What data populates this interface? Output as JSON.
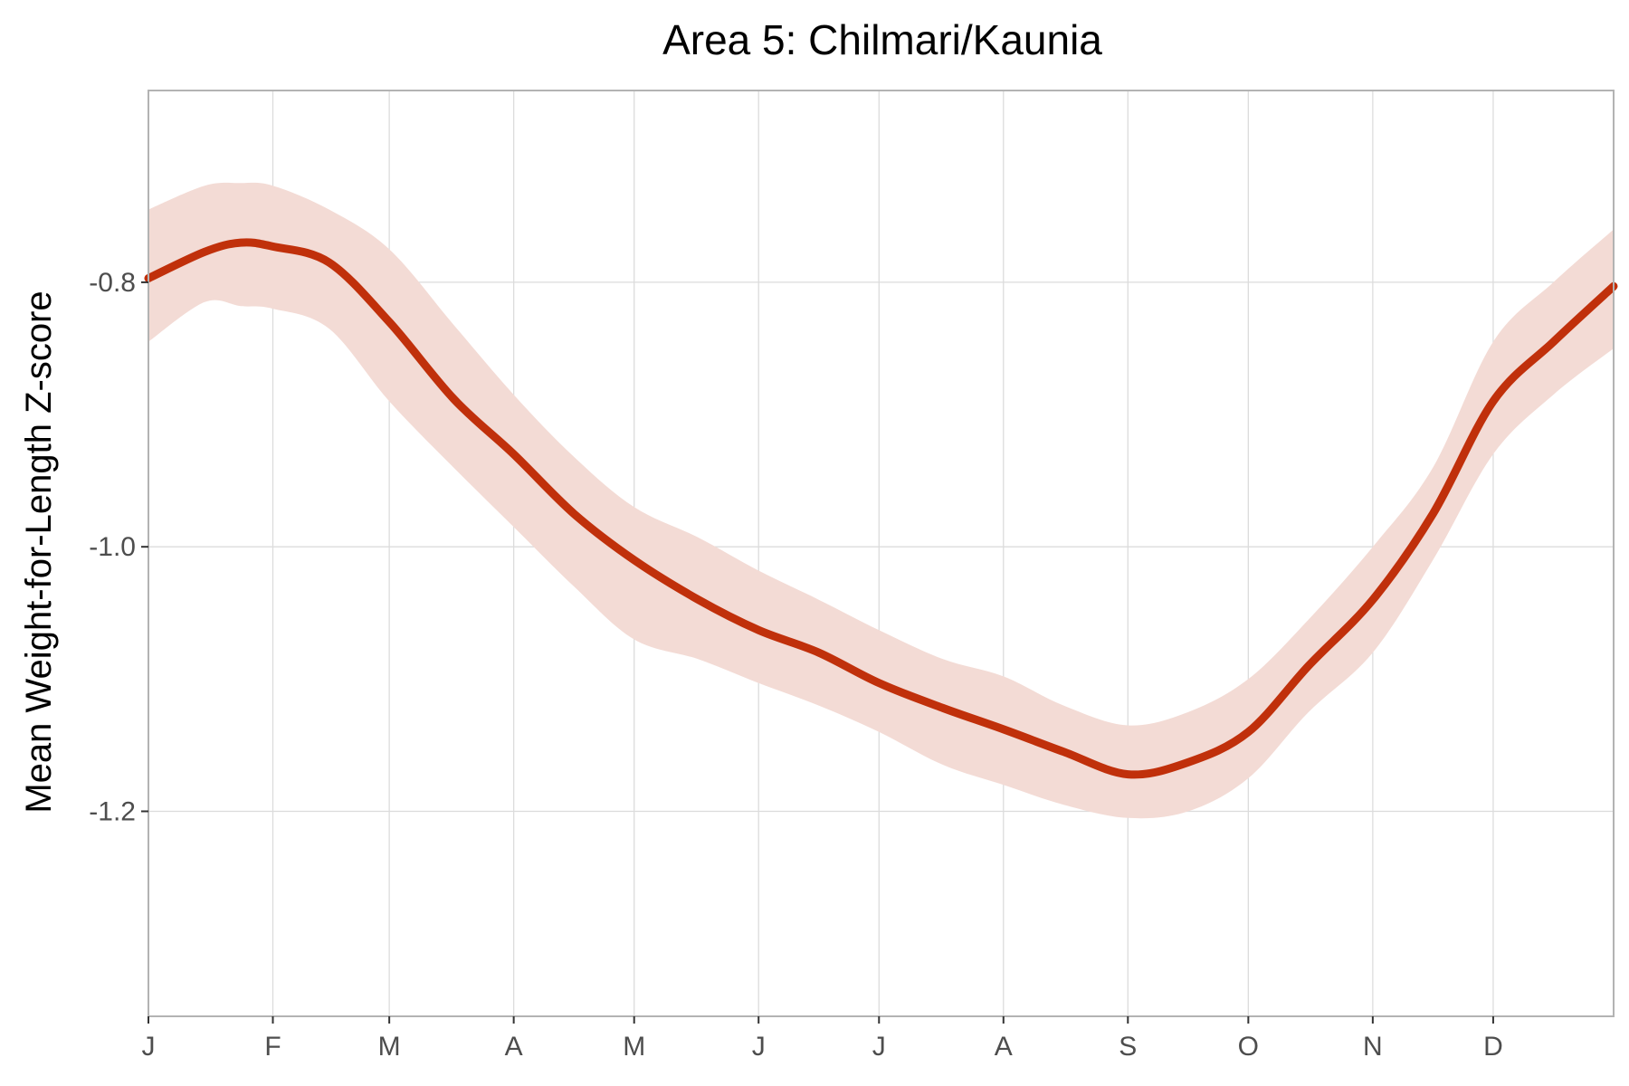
{
  "chart_data": {
    "type": "line",
    "title": "Area 5: Chilmari/Kaunia",
    "xlabel": "",
    "ylabel": "Mean Weight-for-Length Z-score",
    "x_ticks": [
      {
        "label": "J",
        "day": 1
      },
      {
        "label": "F",
        "day": 32
      },
      {
        "label": "M",
        "day": 61
      },
      {
        "label": "A",
        "day": 92
      },
      {
        "label": "M",
        "day": 122
      },
      {
        "label": "J",
        "day": 153
      },
      {
        "label": "J",
        "day": 183
      },
      {
        "label": "A",
        "day": 214
      },
      {
        "label": "S",
        "day": 245
      },
      {
        "label": "O",
        "day": 275
      },
      {
        "label": "N",
        "day": 306
      },
      {
        "label": "D",
        "day": 336
      }
    ],
    "xlim": [
      1,
      366
    ],
    "ylim": [
      -1.355,
      -0.655
    ],
    "y_ticks": [
      -0.8,
      -1.0,
      -1.2
    ],
    "grid": true,
    "legend": "none",
    "colors": {
      "line": "#c0300b",
      "band": "#f3dbd5"
    },
    "series": [
      {
        "x": [
          1,
          15,
          24,
          32,
          46,
          61,
          77,
          92,
          107,
          122,
          138,
          153,
          168,
          183,
          199,
          214,
          229,
          245,
          260,
          275,
          290,
          306,
          321,
          336,
          351,
          366
        ],
        "y": [
          -0.797,
          -0.777,
          -0.77,
          -0.773,
          -0.785,
          -0.83,
          -0.888,
          -0.93,
          -0.975,
          -1.01,
          -1.04,
          -1.063,
          -1.08,
          -1.103,
          -1.122,
          -1.138,
          -1.155,
          -1.172,
          -1.163,
          -1.14,
          -1.09,
          -1.04,
          -0.975,
          -0.89,
          -0.845,
          -0.803
        ],
        "lower": [
          -0.845,
          -0.815,
          -0.818,
          -0.82,
          -0.835,
          -0.89,
          -0.94,
          -0.985,
          -1.03,
          -1.07,
          -1.085,
          -1.103,
          -1.12,
          -1.14,
          -1.165,
          -1.18,
          -1.195,
          -1.205,
          -1.2,
          -1.175,
          -1.125,
          -1.08,
          -1.01,
          -0.93,
          -0.885,
          -0.85
        ],
        "upper": [
          -0.745,
          -0.727,
          -0.725,
          -0.727,
          -0.745,
          -0.775,
          -0.832,
          -0.885,
          -0.932,
          -0.97,
          -0.993,
          -1.018,
          -1.04,
          -1.063,
          -1.085,
          -1.098,
          -1.12,
          -1.135,
          -1.125,
          -1.1,
          -1.055,
          -1.0,
          -0.94,
          -0.845,
          -0.8,
          -0.76
        ]
      }
    ]
  }
}
